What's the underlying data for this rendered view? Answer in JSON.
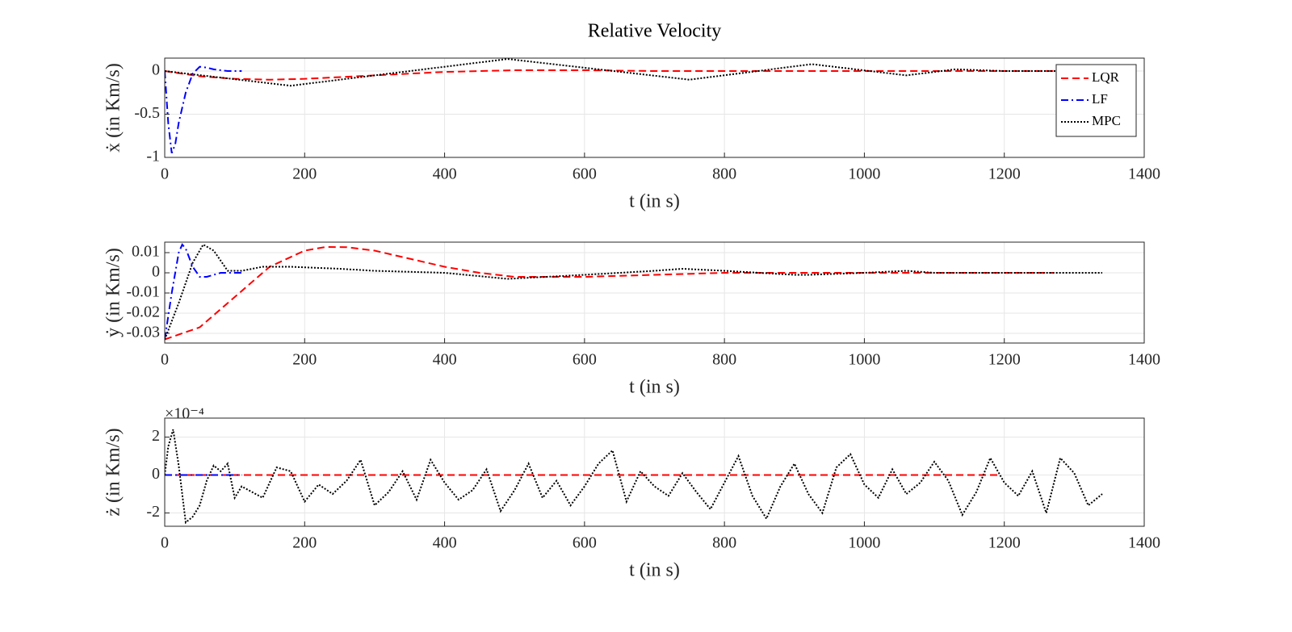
{
  "chart_data": [
    {
      "type": "line",
      "title": "Relative Velocity",
      "ylabel": "ẋ (in Km/s)",
      "xlabel": "t (in s)",
      "xlim": [
        0,
        1400
      ],
      "xticks": [
        0,
        200,
        400,
        600,
        800,
        1000,
        1200,
        1400
      ],
      "ylim": [
        -1,
        0.15
      ],
      "yticks": [
        -1,
        -0.5,
        0
      ],
      "grid": true,
      "legend": "northeast",
      "series": [
        {
          "name": "LQR",
          "color": "#ff0000",
          "dash": "dashed",
          "x": [
            0,
            50,
            100,
            150,
            200,
            300,
            400,
            500,
            600,
            700,
            800,
            900,
            1000,
            1100,
            1200,
            1270
          ],
          "values": [
            0,
            -0.06,
            -0.09,
            -0.1,
            -0.09,
            -0.05,
            -0.01,
            0.01,
            0.01,
            0,
            0,
            0,
            0,
            0,
            0,
            0
          ]
        },
        {
          "name": "LF",
          "color": "#0000ff",
          "dash": "dashdot",
          "x": [
            0,
            5,
            10,
            15,
            20,
            30,
            40,
            50,
            60,
            70,
            80,
            90,
            100,
            110
          ],
          "values": [
            0,
            -0.6,
            -0.95,
            -0.85,
            -0.6,
            -0.25,
            -0.03,
            0.05,
            0.04,
            0.02,
            0.01,
            0,
            0,
            0
          ]
        },
        {
          "name": "MPC",
          "color": "#000000",
          "dash": "dotted",
          "x": [
            0,
            180,
            490,
            750,
            925,
            1060,
            1130,
            1200,
            1340
          ],
          "values": [
            0,
            -0.17,
            0.14,
            -0.1,
            0.08,
            -0.05,
            0.02,
            0,
            0
          ]
        }
      ]
    },
    {
      "type": "line",
      "ylabel": "ẏ (in Km/s)",
      "xlabel": "t (in s)",
      "xlim": [
        0,
        1400
      ],
      "xticks": [
        0,
        200,
        400,
        600,
        800,
        1000,
        1200,
        1400
      ],
      "ylim": [
        -0.0348,
        0.0152
      ],
      "yticks": [
        -0.03,
        -0.02,
        -0.01,
        0,
        0.01
      ],
      "grid": true,
      "series": [
        {
          "color": "#ff0000",
          "dash": "dashed",
          "x": [
            0,
            50,
            100,
            150,
            200,
            230,
            260,
            300,
            350,
            400,
            450,
            500,
            600,
            700,
            800,
            900,
            1000,
            1100,
            1200,
            1270
          ],
          "values": [
            -0.033,
            -0.027,
            -0.012,
            0.003,
            0.011,
            0.0128,
            0.0127,
            0.011,
            0.007,
            0.003,
            0,
            -0.002,
            -0.002,
            -0.001,
            0,
            0,
            0,
            0,
            0,
            0
          ]
        },
        {
          "color": "#0000ff",
          "dash": "dashdot",
          "x": [
            0,
            10,
            20,
            25,
            30,
            40,
            50,
            60,
            70,
            80,
            90,
            100,
            110
          ],
          "values": [
            -0.033,
            -0.01,
            0.01,
            0.014,
            0.012,
            0.003,
            -0.002,
            -0.002,
            -0.001,
            0,
            0,
            0,
            0
          ]
        },
        {
          "color": "#000000",
          "dash": "dotted",
          "x": [
            0,
            20,
            40,
            55,
            70,
            90,
            110,
            140,
            180,
            250,
            300,
            400,
            490,
            600,
            700,
            740,
            800,
            900,
            920,
            1000,
            1060,
            1100,
            1200,
            1340
          ],
          "values": [
            -0.033,
            -0.015,
            0.005,
            0.014,
            0.011,
            0.001,
            0.001,
            0.003,
            0.003,
            0.002,
            0.001,
            0,
            -0.003,
            -0.001,
            0.001,
            0.002,
            0.001,
            -0.001,
            -0.001,
            0,
            0.001,
            0,
            0,
            0
          ]
        }
      ]
    },
    {
      "type": "line",
      "ylabel": "ż (in Km/s)",
      "xlabel": "t (in s)",
      "y_exponent": "×10⁻⁴",
      "xlim": [
        0,
        1400
      ],
      "xticks": [
        0,
        200,
        400,
        600,
        800,
        1000,
        1200,
        1400
      ],
      "ylim": [
        -2.7,
        3
      ],
      "yticks": [
        -2,
        0,
        2
      ],
      "grid": true,
      "series": [
        {
          "color": "#ff0000",
          "dash": "dashed",
          "x": [
            0,
            1190
          ],
          "values": [
            0,
            0
          ]
        },
        {
          "color": "#0000ff",
          "dash": "dashdot",
          "x": [
            0,
            110
          ],
          "values": [
            0,
            0
          ]
        },
        {
          "color": "#000000",
          "dash": "dotted",
          "x": [
            0,
            5,
            12,
            20,
            30,
            40,
            50,
            60,
            70,
            80,
            90,
            100,
            110,
            120,
            140,
            160,
            180,
            200,
            220,
            240,
            260,
            280,
            300,
            320,
            340,
            360,
            380,
            400,
            420,
            440,
            460,
            480,
            500,
            520,
            540,
            560,
            580,
            600,
            620,
            640,
            660,
            680,
            700,
            720,
            740,
            760,
            780,
            800,
            820,
            840,
            860,
            880,
            900,
            920,
            940,
            960,
            980,
            1000,
            1020,
            1040,
            1060,
            1080,
            1100,
            1120,
            1140,
            1160,
            1180,
            1200,
            1220,
            1240,
            1260,
            1280,
            1300,
            1320,
            1340
          ],
          "values": [
            0,
            1.5,
            2.4,
            0.5,
            -2.5,
            -2.2,
            -1.6,
            -0.3,
            0.5,
            0.2,
            0.6,
            -1.2,
            -0.6,
            -0.8,
            -1.2,
            0.4,
            0.2,
            -1.4,
            -0.5,
            -1.0,
            -0.3,
            0.8,
            -1.6,
            -0.9,
            0.2,
            -1.3,
            0.8,
            -0.4,
            -1.3,
            -0.8,
            0.3,
            -1.9,
            -0.8,
            0.6,
            -1.2,
            -0.3,
            -1.6,
            -0.6,
            0.6,
            1.3,
            -1.4,
            0.2,
            -0.6,
            -1.1,
            0.1,
            -0.9,
            -1.8,
            -0.4,
            1.0,
            -1.1,
            -2.3,
            -0.6,
            0.6,
            -1.0,
            -2.0,
            0.4,
            1.1,
            -0.5,
            -1.2,
            0.3,
            -1.0,
            -0.4,
            0.7,
            -0.3,
            -2.1,
            -0.9,
            0.9,
            -0.4,
            -1.1,
            0.2,
            -2.0,
            0.9,
            0.1,
            -1.6,
            -1.0
          ]
        }
      ]
    }
  ]
}
